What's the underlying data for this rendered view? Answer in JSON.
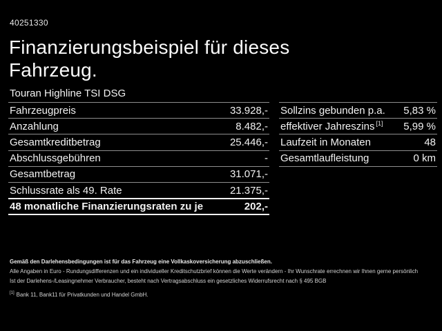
{
  "colors": {
    "background": "#000000",
    "text": "#f2f2f2",
    "separator": "#8f8f8f",
    "highlight_separator": "#f0f0f0"
  },
  "header": {
    "reference_number": "40251330",
    "title": "Finanzierungsbeispiel für dieses Fahrzeug.",
    "subtitle": "Touran Highline TSI DSG"
  },
  "left_table": {
    "rows": [
      {
        "label": "Fahrzeugpreis",
        "value": "33.928,-"
      },
      {
        "label": "Anzahlung",
        "value": "8.482,-"
      },
      {
        "label": "Gesamtkreditbetrag",
        "value": "25.446,-"
      },
      {
        "label": "Abschlussgebühren",
        "value": "-"
      },
      {
        "label": "Gesamtbetrag",
        "value": "31.071,-"
      },
      {
        "label": "Schlussrate als 49. Rate",
        "value": "21.375,-"
      }
    ],
    "highlight_row": {
      "label": "48 monatliche Finanzierungsraten zu je",
      "value": "202,-"
    }
  },
  "right_table": {
    "rows": [
      {
        "label": "Sollzins gebunden p.a.",
        "footnote": "",
        "value": "5,83 %"
      },
      {
        "label": "effektiver Jahreszins",
        "footnote": "[1]",
        "value": "5,99 %"
      },
      {
        "label": "Laufzeit in Monaten",
        "footnote": "",
        "value": "48"
      },
      {
        "label": "Gesamtlaufleistung",
        "footnote": "",
        "value": "0 km"
      }
    ]
  },
  "footer": {
    "insurance_note": "Gemäß den Darlehensbedingungen ist für das Fahrzeug eine Vollkaskoversicherung abzuschließen.",
    "disclaimer1": "Alle Angaben in Euro - Rundungsdifferenzen und ein individueller Kreditschutzbrief können die Werte verändern - Ihr Wunschrate errechnen wir Ihnen gerne persönlich",
    "disclaimer2": "Ist der Darlehens-/Leasingnehmer Verbraucher, besteht nach Vertragsabschluss ein gesetzliches Widerrufsrecht nach § 495 BGB",
    "footnote_marker": "[1]",
    "footnote_text": "Bank 11, Bank11 für Privatkunden und Handel GmbH."
  }
}
